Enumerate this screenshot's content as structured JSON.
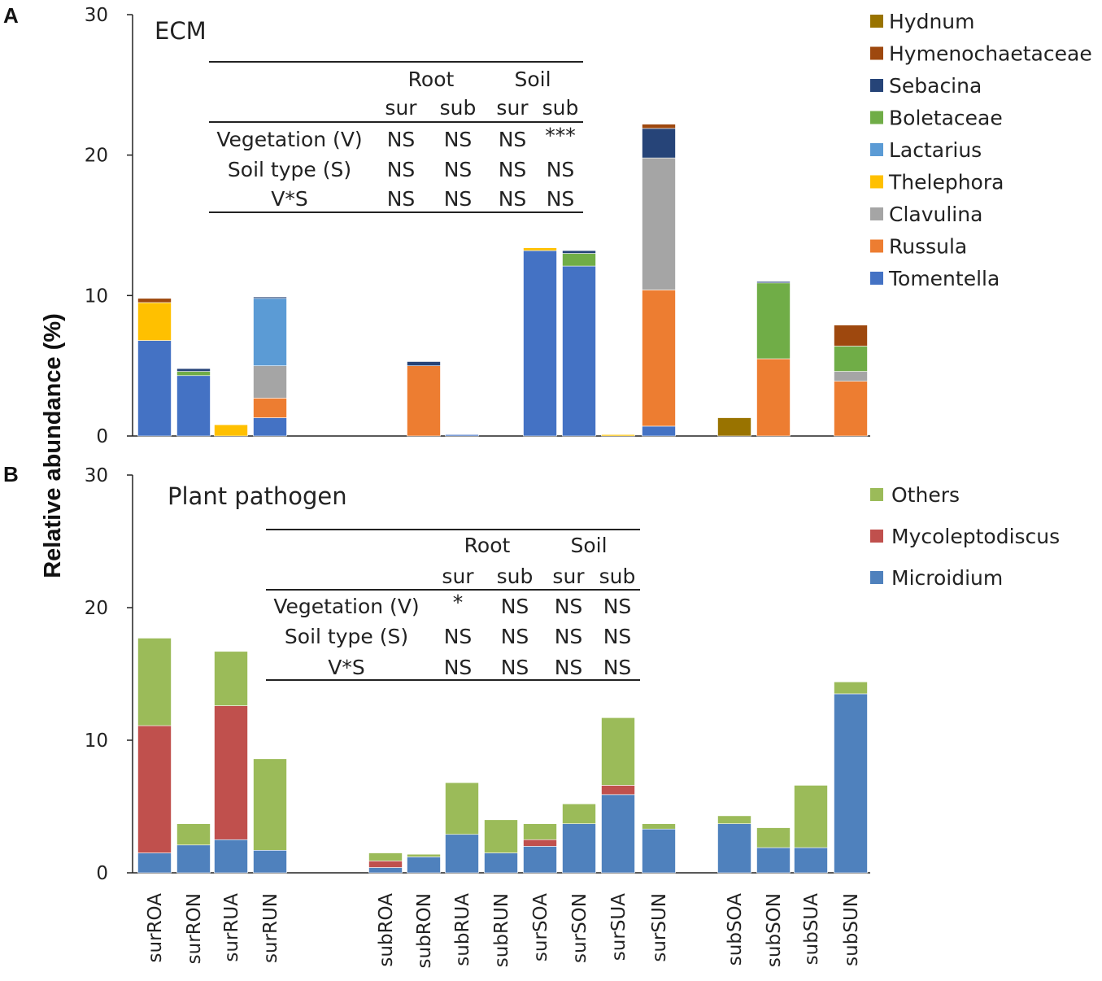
{
  "figure": {
    "ylabel": "Relative abundance (%)",
    "categories": [
      "surROA",
      "surRON",
      "surRUA",
      "surRUN",
      "subROA",
      "subRON",
      "subRUA",
      "subRUN",
      "surSOA",
      "surSON",
      "surSUA",
      "surSUN",
      "subSOA",
      "subSON",
      "subSUA",
      "subSUN"
    ]
  },
  "chart_data": [
    {
      "type": "bar",
      "stacked": true,
      "panel": "A",
      "title": "ECM",
      "ylabel": "Relative abundance (%)",
      "ylim": [
        0,
        30
      ],
      "yticks": [
        0,
        10,
        20,
        30
      ],
      "categories": [
        "surROA",
        "surRON",
        "surRUA",
        "surRUN",
        "subROA",
        "subRON",
        "subRUA",
        "subRUN",
        "surSOA",
        "surSON",
        "surSUA",
        "surSUN",
        "subSOA",
        "subSON",
        "subSUA",
        "subSUN"
      ],
      "series": [
        {
          "name": "Tomentella",
          "color": "#4472c4",
          "values": [
            6.8,
            4.3,
            0,
            1.3,
            0,
            0,
            0.1,
            0,
            13.2,
            12.1,
            0,
            0.7,
            0,
            0,
            0,
            0
          ]
        },
        {
          "name": "Russula",
          "color": "#ed7d31",
          "values": [
            0,
            0,
            0,
            1.4,
            0,
            5.0,
            0,
            0,
            0,
            0,
            0,
            9.7,
            0,
            5.5,
            0,
            3.9
          ]
        },
        {
          "name": "Clavulina",
          "color": "#a5a5a5",
          "values": [
            0,
            0,
            0,
            2.3,
            0,
            0,
            0,
            0,
            0,
            0,
            0,
            9.4,
            0,
            0,
            0,
            0.7
          ]
        },
        {
          "name": "Thelephora",
          "color": "#ffc000",
          "values": [
            2.7,
            0,
            0.8,
            0,
            0,
            0,
            0,
            0,
            0.2,
            0,
            0.1,
            0,
            0,
            0,
            0,
            0
          ]
        },
        {
          "name": "Lactarius",
          "color": "#5b9bd5",
          "values": [
            0,
            0,
            0,
            4.8,
            0,
            0,
            0,
            0,
            0,
            0,
            0,
            0,
            0,
            0,
            0,
            0
          ]
        },
        {
          "name": "Boletaceae",
          "color": "#70ad47",
          "values": [
            0,
            0.3,
            0,
            0,
            0,
            0,
            0,
            0,
            0,
            0.9,
            0,
            0,
            0,
            5.4,
            0,
            1.8
          ]
        },
        {
          "name": "Sebacina",
          "color": "#264478",
          "values": [
            0,
            0.2,
            0,
            0.1,
            0,
            0.3,
            0,
            0,
            0,
            0.2,
            0,
            2.1,
            0,
            0.1,
            0,
            0
          ]
        },
        {
          "name": "Hymenochaetaceae",
          "color": "#9e480e",
          "values": [
            0.3,
            0,
            0,
            0,
            0,
            0,
            0,
            0,
            0,
            0,
            0,
            0.3,
            0,
            0,
            0,
            1.5
          ]
        },
        {
          "name": "Hydnum",
          "color": "#997300",
          "values": [
            0,
            0,
            0,
            0,
            0,
            0,
            0,
            0,
            0,
            0,
            0,
            0,
            1.3,
            0,
            0,
            0
          ]
        }
      ],
      "legend_order": [
        "Hydnum",
        "Hymenochaetaceae",
        "Sebacina",
        "Boletaceae",
        "Lactarius",
        "Thelephora",
        "Clavulina",
        "Russula",
        "Tomentella"
      ],
      "stats_table": {
        "groups": [
          "Root",
          "Soil"
        ],
        "subheaders": [
          "sur",
          "sub",
          "sur",
          "sub"
        ],
        "rows": [
          {
            "label": "Vegetation (V)",
            "cells": [
              "NS",
              "NS",
              "NS",
              "***"
            ]
          },
          {
            "label": "Soil type (S)",
            "cells": [
              "NS",
              "NS",
              "NS",
              "NS"
            ]
          },
          {
            "label": "V*S",
            "cells": [
              "NS",
              "NS",
              "NS",
              "NS"
            ]
          }
        ]
      }
    },
    {
      "type": "bar",
      "stacked": true,
      "panel": "B",
      "title": "Plant pathogen",
      "ylabel": "Relative abundance (%)",
      "ylim": [
        0,
        30
      ],
      "yticks": [
        0,
        10,
        20,
        30
      ],
      "categories": [
        "surROA",
        "surRON",
        "surRUA",
        "surRUN",
        "subROA",
        "subRON",
        "subRUA",
        "subRUN",
        "surSOA",
        "surSON",
        "surSUA",
        "surSUN",
        "subSOA",
        "subSON",
        "subSUA",
        "subSUN"
      ],
      "series": [
        {
          "name": "Microidium",
          "color": "#4f81bd",
          "values": [
            1.5,
            2.1,
            2.5,
            1.7,
            0.4,
            1.2,
            2.9,
            1.5,
            2.0,
            3.7,
            5.9,
            3.3,
            3.7,
            1.9,
            1.9,
            13.5
          ]
        },
        {
          "name": "Mycoleptodiscus",
          "color": "#c0504d",
          "values": [
            9.6,
            0,
            10.1,
            0,
            0.5,
            0,
            0,
            0,
            0.5,
            0,
            0.7,
            0,
            0,
            0,
            0,
            0
          ]
        },
        {
          "name": "Others",
          "color": "#9bbb59",
          "values": [
            6.6,
            1.6,
            4.1,
            6.9,
            0.6,
            0.2,
            3.9,
            2.5,
            1.2,
            1.5,
            5.1,
            0.4,
            0.6,
            1.5,
            4.7,
            0.9
          ]
        }
      ],
      "legend_order": [
        "Others",
        "Mycoleptodiscus",
        "Microidium"
      ],
      "stats_table": {
        "groups": [
          "Root",
          "Soil"
        ],
        "subheaders": [
          "sur",
          "sub",
          "sur",
          "sub"
        ],
        "rows": [
          {
            "label": "Vegetation (V)",
            "cells": [
              "*",
              "NS",
              "NS",
              "NS"
            ]
          },
          {
            "label": "Soil type (S)",
            "cells": [
              "NS",
              "NS",
              "NS",
              "NS"
            ]
          },
          {
            "label": "V*S",
            "cells": [
              "NS",
              "NS",
              "NS",
              "NS"
            ]
          }
        ]
      }
    }
  ]
}
